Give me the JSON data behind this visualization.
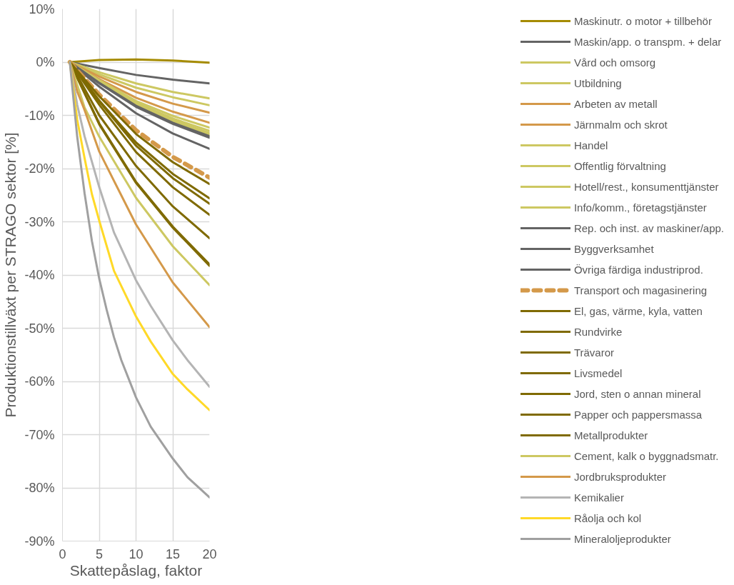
{
  "chart_data": {
    "type": "line",
    "xlabel": "Skattepåslag, faktor",
    "ylabel": "Produktionstillväxt per STRAGO sektor [%]",
    "xlim": [
      0,
      20
    ],
    "xticks": [
      0,
      5,
      10,
      15,
      20
    ],
    "ylim": [
      -90,
      10
    ],
    "yticks": [
      {
        "value": 10,
        "label": "10%"
      },
      {
        "value": 0,
        "label": "0%"
      },
      {
        "value": -10,
        "label": "-10%"
      },
      {
        "value": -20,
        "label": "-20%"
      },
      {
        "value": -30,
        "label": "-30%"
      },
      {
        "value": -40,
        "label": "-40%"
      },
      {
        "value": -50,
        "label": "-50%"
      },
      {
        "value": -60,
        "label": "-60%"
      },
      {
        "value": -70,
        "label": "-70%"
      },
      {
        "value": -80,
        "label": "-80%"
      },
      {
        "value": -90,
        "label": "-90%"
      }
    ],
    "grid": true,
    "legend": "right",
    "marker": "none",
    "line_style": "solid",
    "series": [
      {
        "name": "Maskinutr. o motor + tillbehör",
        "color": "#a58b00",
        "x": [
          1,
          5,
          10,
          15,
          20
        ],
        "values": [
          0,
          0.4,
          0.5,
          0.3,
          -0.1
        ]
      },
      {
        "name": "Maskin/app. o transpm. + delar",
        "color": "#646464",
        "x": [
          1,
          5,
          10,
          15,
          20
        ],
        "values": [
          0,
          -1.1,
          -2.4,
          -3.3,
          -4.0
        ]
      },
      {
        "name": "Vård och omsorg",
        "color": "#cdc862",
        "x": [
          1,
          5,
          10,
          15,
          20
        ],
        "values": [
          0,
          -1.9,
          -4.0,
          -5.6,
          -6.8
        ]
      },
      {
        "name": "Utbildning",
        "color": "#cdc862",
        "x": [
          1,
          5,
          10,
          15,
          20
        ],
        "values": [
          0,
          -2.3,
          -4.8,
          -6.6,
          -8.1
        ]
      },
      {
        "name": "Arbeten av metall",
        "color": "#d4994a",
        "x": [
          1,
          5,
          10,
          15,
          20
        ],
        "values": [
          0,
          -2.7,
          -5.6,
          -7.8,
          -9.5
        ]
      },
      {
        "name": "Järnmalm och skrot",
        "color": "#d4994a",
        "x": [
          1,
          5,
          10,
          15,
          20
        ],
        "values": [
          0,
          -3.2,
          -6.7,
          -9.3,
          -11.4
        ]
      },
      {
        "name": "Handel",
        "color": "#cdc862",
        "x": [
          1,
          5,
          10,
          15,
          20
        ],
        "values": [
          0,
          -3.4,
          -7.3,
          -10.1,
          -12.3
        ]
      },
      {
        "name": "Offentlig förvaltning",
        "color": "#cdc862",
        "x": [
          1,
          5,
          10,
          15,
          20
        ],
        "values": [
          0,
          -3.6,
          -7.6,
          -10.6,
          -12.9
        ]
      },
      {
        "name": "Hotell/rest., konsumenttjänster",
        "color": "#cdc862",
        "x": [
          1,
          5,
          10,
          15,
          20
        ],
        "values": [
          0,
          -3.7,
          -7.8,
          -10.9,
          -13.3
        ]
      },
      {
        "name": "Info/komm., företagstjänster",
        "color": "#cdc862",
        "x": [
          1,
          5,
          10,
          15,
          20
        ],
        "values": [
          0,
          -3.8,
          -8.0,
          -11.2,
          -13.6
        ]
      },
      {
        "name": "Rep. och inst. av maskiner/app.",
        "color": "#646464",
        "x": [
          1,
          5,
          10,
          15,
          20
        ],
        "values": [
          0,
          -3.9,
          -8.2,
          -11.4,
          -13.9
        ]
      },
      {
        "name": "Byggverksamhet",
        "color": "#646464",
        "x": [
          1,
          5,
          10,
          15,
          20
        ],
        "values": [
          0,
          -4.0,
          -8.4,
          -11.6,
          -14.2
        ]
      },
      {
        "name": "Övriga färdiga industriprod.",
        "color": "#646464",
        "x": [
          1,
          5,
          10,
          15,
          20
        ],
        "values": [
          0,
          -4.6,
          -9.6,
          -13.4,
          -16.3
        ]
      },
      {
        "name": "Transport och magasinering",
        "color": "#d4994a",
        "line_style": "dashed",
        "x": [
          1,
          5,
          10,
          15,
          20
        ],
        "values": [
          0,
          -6.1,
          -12.8,
          -17.8,
          -21.7
        ]
      },
      {
        "name": "El, gas, värme, kyla, vatten",
        "color": "#7f6a00",
        "x": [
          1,
          5,
          10,
          15,
          20
        ],
        "values": [
          0,
          -6.4,
          -13.5,
          -18.8,
          -22.9
        ]
      },
      {
        "name": "Rundvirke",
        "color": "#7f6a00",
        "x": [
          1,
          5,
          10,
          15,
          20
        ],
        "values": [
          0,
          -7.2,
          -15.1,
          -21.0,
          -25.6
        ]
      },
      {
        "name": "Trävaror",
        "color": "#7f6a00",
        "x": [
          1,
          5,
          10,
          15,
          20
        ],
        "values": [
          0,
          -7.4,
          -15.7,
          -21.8,
          -26.6
        ]
      },
      {
        "name": "Livsmedel",
        "color": "#7f6a00",
        "x": [
          1,
          5,
          10,
          15,
          20
        ],
        "values": [
          0,
          -8.0,
          -16.9,
          -23.5,
          -28.7
        ]
      },
      {
        "name": "Jord, sten o annan mineral",
        "color": "#7f6a00",
        "x": [
          1,
          5,
          10,
          15,
          20
        ],
        "values": [
          0,
          -10.0,
          -19.5,
          -27.1,
          -33.1
        ]
      },
      {
        "name": "Papper och pappersmassa",
        "color": "#7f6a00",
        "x": [
          1,
          5,
          10,
          15,
          20
        ],
        "values": [
          0,
          -11.5,
          -22.5,
          -30.9,
          -38.0
        ]
      },
      {
        "name": "Metallprodukter",
        "color": "#7f6a00",
        "x": [
          1,
          5,
          10,
          15,
          20
        ],
        "values": [
          0,
          -11.7,
          -22.7,
          -31.1,
          -38.3
        ]
      },
      {
        "name": "Cement, kalk o byggnadsmatr.",
        "color": "#cdc862",
        "x": [
          1,
          3,
          5,
          10,
          15,
          20
        ],
        "values": [
          0,
          -8.5,
          -14,
          -25.5,
          -34.6,
          -41.9
        ]
      },
      {
        "name": "Jordbruksprodukter",
        "color": "#d4994a",
        "x": [
          1,
          2,
          3,
          5,
          7,
          10,
          15,
          20
        ],
        "values": [
          0,
          -5.5,
          -9,
          -16.8,
          -22.3,
          -30.5,
          -41.4,
          -49.8
        ]
      },
      {
        "name": "Kemikalier",
        "color": "#b4b4b4",
        "x": [
          1,
          2,
          3,
          5,
          7,
          10,
          12,
          15,
          17,
          20
        ],
        "values": [
          0,
          -8,
          -13.9,
          -23.5,
          -32,
          -41,
          -45.8,
          -52.3,
          -56,
          -61
        ]
      },
      {
        "name": "Råolja och kol",
        "color": "#ffd928",
        "x": [
          1,
          2,
          3,
          4,
          5,
          7,
          10,
          12,
          15,
          17,
          20
        ],
        "values": [
          0,
          -10.8,
          -18,
          -24.8,
          -29.8,
          -39.2,
          -47.8,
          -52.5,
          -58.6,
          -61.5,
          -65.4
        ]
      },
      {
        "name": "Mineraloljeprodukter",
        "color": "#a0a0a0",
        "x": [
          1,
          2,
          3,
          4,
          5,
          6,
          7,
          8,
          10,
          12,
          15,
          17,
          20
        ],
        "values": [
          0,
          -14,
          -24.6,
          -33.6,
          -40.7,
          -46.5,
          -51.7,
          -56,
          -63,
          -68.5,
          -74.5,
          -78,
          -81.8
        ]
      }
    ]
  }
}
